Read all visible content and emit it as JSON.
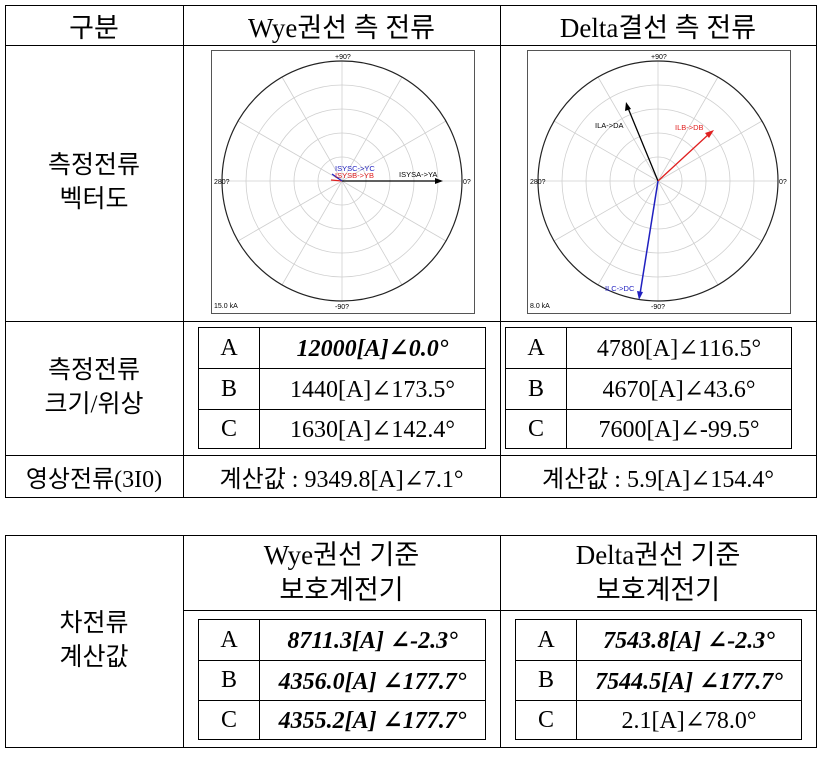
{
  "table1": {
    "headers": [
      "구분",
      "Wye권선 측 전류",
      "Delta결선 측 전류"
    ],
    "vector_row_label": [
      "측정전류",
      "벡터도"
    ],
    "mag_row_label": [
      "측정전류",
      "크기/위상"
    ],
    "zero_row_label": "영상전류(3I0)",
    "wye_rows": [
      {
        "phase": "A",
        "value": "12000[A]∠0.0°",
        "emph": true
      },
      {
        "phase": "B",
        "value": "1440[A]∠173.5°",
        "emph": false
      },
      {
        "phase": "C",
        "value": "1630[A]∠142.4°",
        "emph": false
      }
    ],
    "delta_rows": [
      {
        "phase": "A",
        "value": "4780[A]∠116.5°",
        "emph": false
      },
      {
        "phase": "B",
        "value": "4670[A]∠43.6°",
        "emph": false
      },
      {
        "phase": "C",
        "value": "7600[A]∠-99.5°",
        "emph": false
      }
    ],
    "wye_zero": "계산값 : 9349.8[A]∠7.1°",
    "delta_zero": "계산값 : 5.9[A]∠154.4°"
  },
  "plots": {
    "wye": {
      "label_top": "+90?",
      "label_bottom": "-90?",
      "label_left": "280?",
      "label_right": "0?",
      "scale": "15.0 kA",
      "vectors": [
        {
          "label": "ISYSA->YA",
          "color": "#000000"
        },
        {
          "label": "ISYSB->YB",
          "color": "#e02020"
        },
        {
          "label": "ISYSC->YC",
          "color": "#2020c0"
        }
      ]
    },
    "delta": {
      "label_top": "+90?",
      "label_bottom": "-90?",
      "label_left": "280?",
      "label_right": "0?",
      "scale": "8.0 kA",
      "vectors": [
        {
          "label": "ILA->DA",
          "color": "#000000"
        },
        {
          "label": "ILB->DB",
          "color": "#e02020"
        },
        {
          "label": "ILC->DC",
          "color": "#2020c0"
        }
      ]
    }
  },
  "table2": {
    "row_label": [
      "차전류",
      "계산값"
    ],
    "wye_header": [
      "Wye권선 기준",
      "보호계전기"
    ],
    "delta_header": [
      "Delta권선 기준",
      "보호계전기"
    ],
    "wye_rows": [
      {
        "phase": "A",
        "value": "8711.3[A] ∠-2.3°",
        "emph": true
      },
      {
        "phase": "B",
        "value": "4356.0[A] ∠177.7°",
        "emph": true
      },
      {
        "phase": "C",
        "value": "4355.2[A] ∠177.7°",
        "emph": true
      }
    ],
    "delta_rows": [
      {
        "phase": "A",
        "value": "7543.8[A] ∠-2.3°",
        "emph": true
      },
      {
        "phase": "B",
        "value": "7544.5[A] ∠177.7°",
        "emph": true
      },
      {
        "phase": "C",
        "value": "2.1[A]∠78.0°",
        "emph": false
      }
    ]
  }
}
